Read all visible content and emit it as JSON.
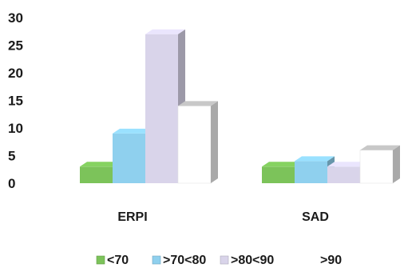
{
  "chart_data": {
    "type": "bar",
    "style": "3d-clustered-column",
    "categories": [
      "ERPI",
      "SAD"
    ],
    "series": [
      {
        "name": "<70",
        "values": [
          3,
          3
        ],
        "color": "#7cc35a"
      },
      {
        "name": ">70<80",
        "values": [
          9,
          4
        ],
        "color": "#8fd0ee"
      },
      {
        "name": ">80<90",
        "values": [
          27,
          3
        ],
        "color": "#d9d4ea"
      },
      {
        "name": ">90",
        "values": [
          14,
          6
        ],
        "color": "#ffffff"
      }
    ],
    "y_ticks": [
      "0",
      "5",
      "10",
      "15",
      "20",
      "25",
      "30"
    ],
    "ylim": [
      0,
      30
    ],
    "grid": false,
    "legend_position": "bottom"
  }
}
